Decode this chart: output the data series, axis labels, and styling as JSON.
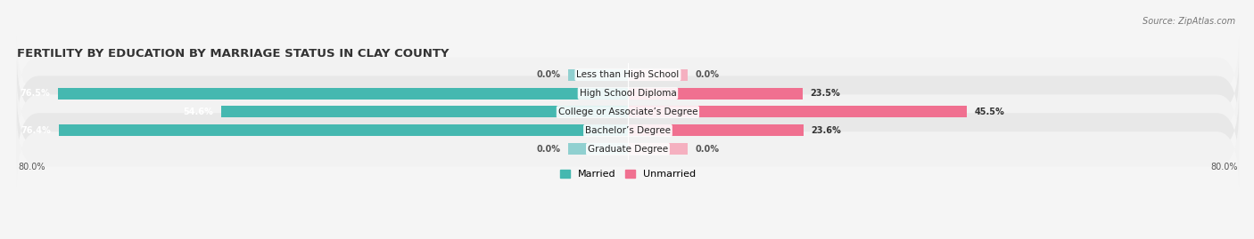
{
  "title": "FERTILITY BY EDUCATION BY MARRIAGE STATUS IN CLAY COUNTY",
  "source": "Source: ZipAtlas.com",
  "categories": [
    "Less than High School",
    "High School Diploma",
    "College or Associate’s Degree",
    "Bachelor’s Degree",
    "Graduate Degree"
  ],
  "married": [
    0.0,
    76.5,
    54.6,
    76.4,
    0.0
  ],
  "unmarried": [
    0.0,
    23.5,
    45.5,
    23.6,
    0.0
  ],
  "married_color": "#45b8b0",
  "unmarried_color": "#f07090",
  "married_zero_color": "#90d0d0",
  "unmarried_zero_color": "#f5b0c0",
  "row_bg_even": "#f2f2f2",
  "row_bg_odd": "#e8e8e8",
  "zero_stub": 8.0,
  "xlim": [
    -82,
    82
  ],
  "background_color": "#f5f5f5",
  "title_fontsize": 9.5,
  "source_fontsize": 7,
  "label_fontsize": 7.5,
  "value_fontsize": 7,
  "legend_fontsize": 8
}
